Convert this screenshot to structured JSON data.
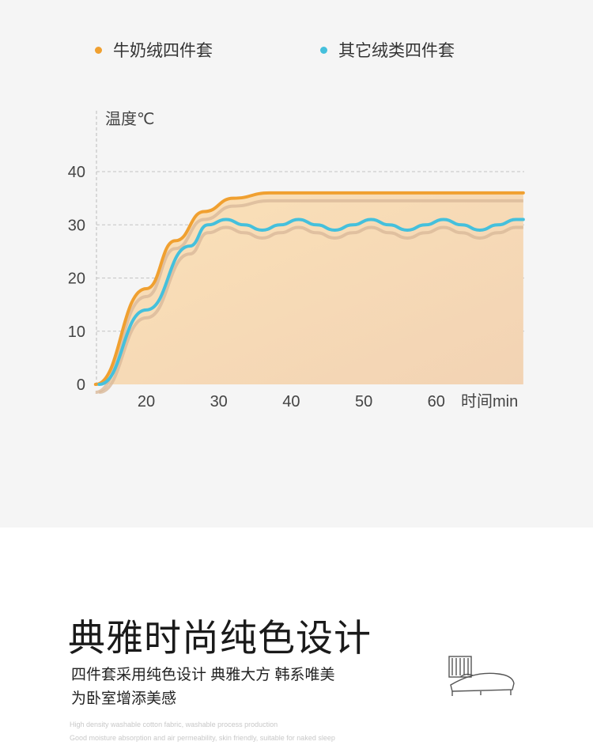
{
  "legend": [
    {
      "label": "牛奶绒四件套",
      "color": "#f0a030"
    },
    {
      "label": "其它绒类四件套",
      "color": "#45c0dc"
    }
  ],
  "chart_data": {
    "type": "line",
    "ylabel": "温度℃",
    "xlabel": "时间min",
    "xticks": [
      20,
      30,
      40,
      50,
      60
    ],
    "yticks": [
      0,
      10,
      20,
      30,
      40
    ],
    "xlim": [
      13,
      72
    ],
    "ylim": [
      0,
      40
    ],
    "grid": true,
    "legend_position": "top",
    "series": [
      {
        "name": "牛奶绒四件套",
        "color": "#f0a030",
        "x": [
          13,
          20,
          24,
          28,
          32,
          37,
          72
        ],
        "y": [
          0,
          18,
          27,
          32.5,
          35,
          36,
          36
        ]
      },
      {
        "name": "其它绒类四件套",
        "color": "#45c0dc",
        "x": [
          13.5,
          20,
          26,
          28.5,
          31,
          33.5,
          36,
          38.5,
          41,
          43.5,
          46,
          48.5,
          51,
          53.5,
          56,
          58.5,
          61,
          63.5,
          66,
          68.5,
          71,
          72
        ],
        "y": [
          0,
          14,
          26,
          30,
          31,
          30,
          29,
          30,
          31,
          30,
          29,
          30,
          31,
          30,
          29,
          30,
          31,
          30,
          29,
          30,
          31,
          31
        ]
      }
    ]
  },
  "promo": {
    "title": "典雅时尚纯色设计",
    "line1": "四件套采用纯色设计  典雅大方 韩系唯美",
    "line2": "为卧室增添美感",
    "en1": "High density washable cotton fabric, washable process production",
    "en2": "Good moisture absorption and air permeability, skin friendly, suitable for naked sleep"
  }
}
